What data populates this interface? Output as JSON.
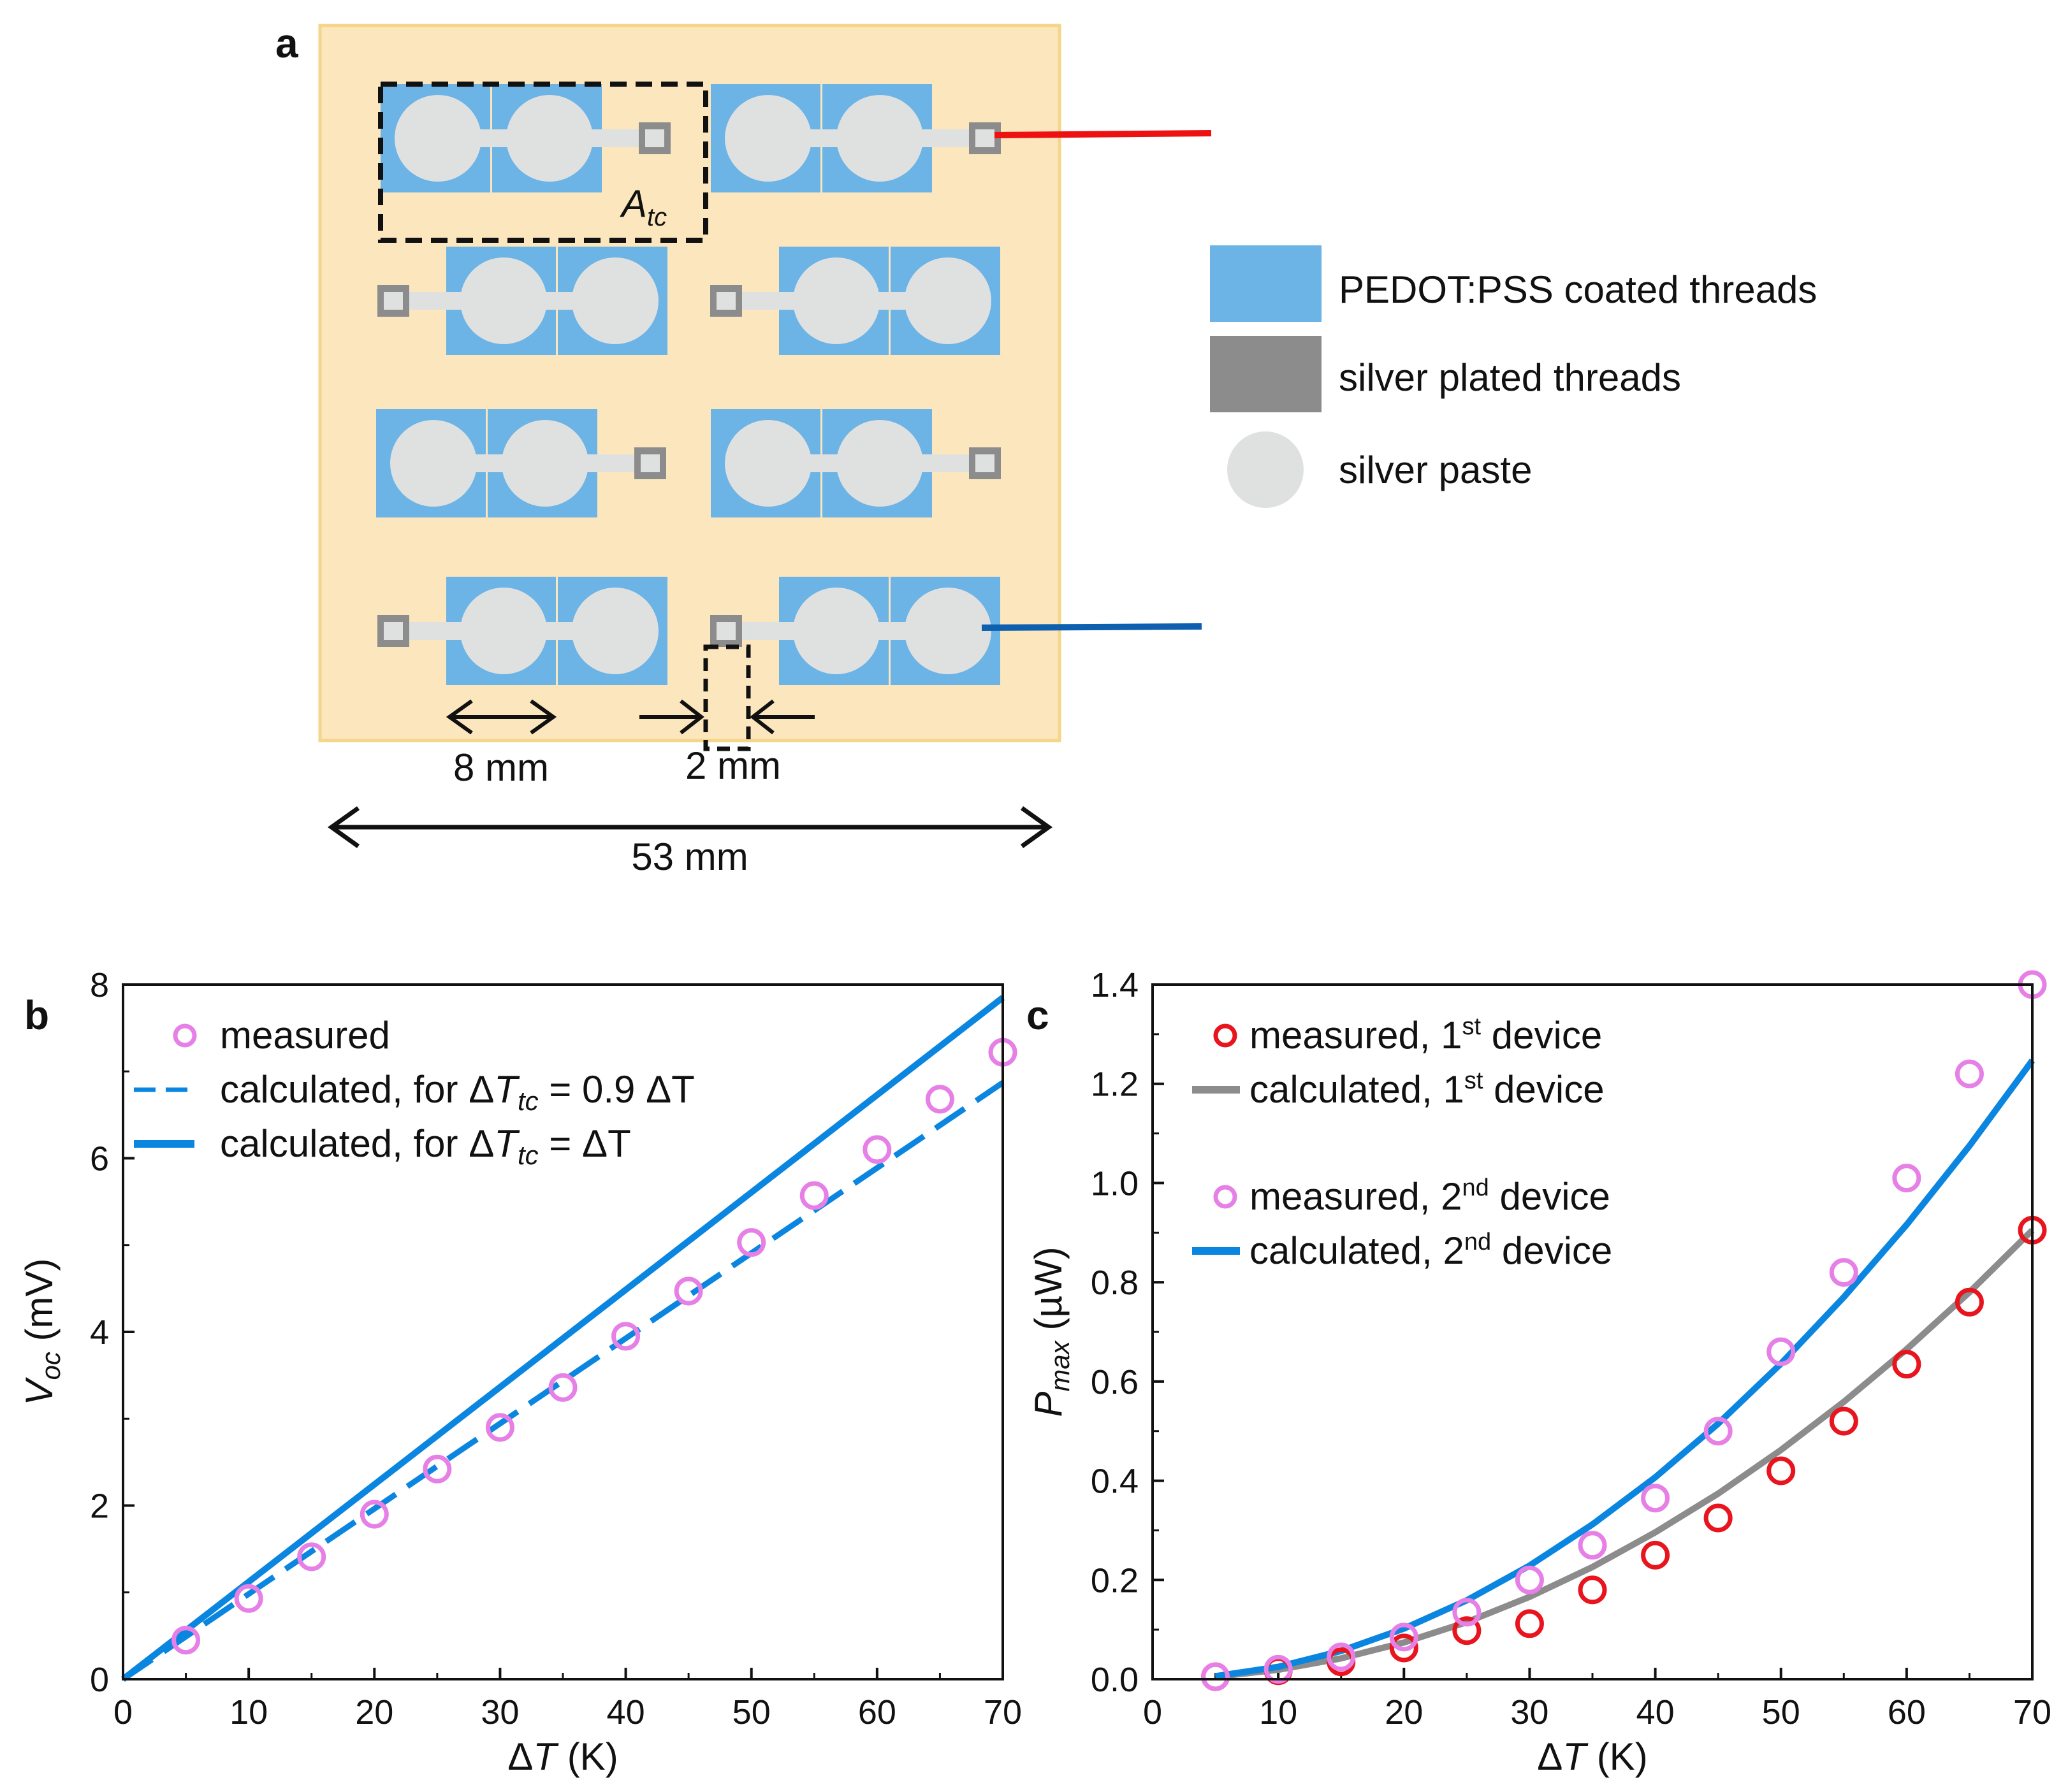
{
  "panel_a": {
    "label": "a",
    "area_label": "A",
    "area_sub": "tc",
    "dim_8mm": "8 mm",
    "dim_2mm": "2 mm",
    "dim_53mm": "53 mm",
    "legend": [
      {
        "label": "PEDOT:PSS coated threads",
        "symbol": "blue-rect"
      },
      {
        "label": "silver plated threads",
        "symbol": "gray-rect"
      },
      {
        "label": "silver paste",
        "symbol": "light-circle"
      }
    ],
    "colors": {
      "substrate": "#fce6bd",
      "substrate_border": "#f5d58a",
      "pedot": "#6cb3e6",
      "silver_thread": "#8c8c8c",
      "silver_paste": "#dfe1e0",
      "wire_red": "#ee1111",
      "wire_blue": "#0d5fb0"
    }
  },
  "chart_data": [
    {
      "id": "b",
      "panel_label": "b",
      "type": "scatter",
      "xlabel": "ΔT (K)",
      "ylabel_main": "V",
      "ylabel_sub": "oc",
      "ylabel_unit": "(mV)",
      "xlim": [
        0,
        70
      ],
      "ylim": [
        0,
        8
      ],
      "xticks": [
        "0",
        "10",
        "20",
        "30",
        "40",
        "50",
        "60",
        "70"
      ],
      "yticks": [
        "0",
        "2",
        "4",
        "6",
        "8"
      ],
      "series": [
        {
          "name": "measured",
          "kind": "marker",
          "color": "#e680e6",
          "x": [
            5,
            10,
            15,
            20,
            25,
            30,
            35,
            40,
            45,
            50,
            55,
            60,
            65,
            70
          ],
          "y": [
            0.45,
            0.93,
            1.41,
            1.9,
            2.42,
            2.9,
            3.36,
            3.95,
            4.47,
            5.03,
            5.57,
            6.1,
            6.68,
            7.22
          ]
        },
        {
          "name": "calculated, for ΔT_tc = 0.9 ΔT",
          "legend_prefix": "calculated, for Δ",
          "legend_T": "T",
          "legend_sub": "tc",
          "legend_suffix": " = 0.9 ΔT",
          "kind": "dashed",
          "color": "#0a86e0",
          "x": [
            0,
            70
          ],
          "y": [
            0,
            6.87
          ]
        },
        {
          "name": "calculated, for ΔT_tc = ΔT",
          "legend_prefix": "calculated, for Δ",
          "legend_T": "T",
          "legend_sub": "tc",
          "legend_suffix": " = ΔT",
          "kind": "solid",
          "color": "#0a86e0",
          "x": [
            0,
            70
          ],
          "y": [
            0,
            7.85
          ]
        }
      ]
    },
    {
      "id": "c",
      "panel_label": "c",
      "type": "scatter",
      "xlabel": "ΔT (K)",
      "ylabel_main": "P",
      "ylabel_sub": "max",
      "ylabel_unit": "(µW)",
      "xlim": [
        0,
        70
      ],
      "ylim": [
        0,
        1.4
      ],
      "xticks": [
        "0",
        "10",
        "20",
        "30",
        "40",
        "50",
        "60",
        "70"
      ],
      "yticks": [
        "0.0",
        "0.2",
        "0.4",
        "0.6",
        "0.8",
        "1.0",
        "1.2",
        "1.4"
      ],
      "series": [
        {
          "name": "measured, 1st device",
          "legend_prefix": "measured, 1",
          "legend_sup": "st",
          "legend_suffix": " device",
          "kind": "marker",
          "color": "#e8141e",
          "x": [
            5,
            10,
            15,
            20,
            25,
            30,
            35,
            40,
            45,
            50,
            55,
            60,
            65,
            70
          ],
          "y": [
            0.005,
            0.017,
            0.035,
            0.063,
            0.098,
            0.112,
            0.18,
            0.25,
            0.325,
            0.42,
            0.52,
            0.635,
            0.76,
            0.905
          ]
        },
        {
          "name": "calculated, 1st device",
          "legend_prefix": "calculated, 1",
          "legend_sup": "st",
          "legend_suffix": " device",
          "kind": "solid",
          "color": "#8c8c8c",
          "x": [
            5,
            10,
            15,
            20,
            25,
            30,
            35,
            40,
            45,
            50,
            55,
            60,
            65,
            70
          ],
          "y": [
            0.005,
            0.019,
            0.042,
            0.074,
            0.115,
            0.166,
            0.226,
            0.296,
            0.374,
            0.462,
            0.559,
            0.665,
            0.78,
            0.905
          ]
        },
        {
          "name": "measured, 2nd device",
          "legend_prefix": "measured, 2",
          "legend_sup": "nd",
          "legend_suffix": " device",
          "kind": "marker",
          "color": "#e680e6",
          "x": [
            5,
            10,
            15,
            20,
            25,
            30,
            35,
            40,
            45,
            50,
            55,
            60,
            65,
            70
          ],
          "y": [
            0.005,
            0.02,
            0.045,
            0.085,
            0.135,
            0.2,
            0.27,
            0.365,
            0.5,
            0.66,
            0.82,
            1.01,
            1.22,
            1.4
          ]
        },
        {
          "name": "calculated, 2nd device",
          "legend_prefix": "calculated, 2",
          "legend_sup": "nd",
          "legend_suffix": " device",
          "kind": "solid",
          "color": "#0a86e0",
          "x": [
            5,
            10,
            15,
            20,
            25,
            30,
            35,
            40,
            45,
            50,
            55,
            60,
            65,
            70
          ],
          "y": [
            0.006,
            0.025,
            0.057,
            0.102,
            0.159,
            0.229,
            0.312,
            0.407,
            0.515,
            0.636,
            0.77,
            0.916,
            1.075,
            1.247
          ]
        }
      ]
    }
  ]
}
